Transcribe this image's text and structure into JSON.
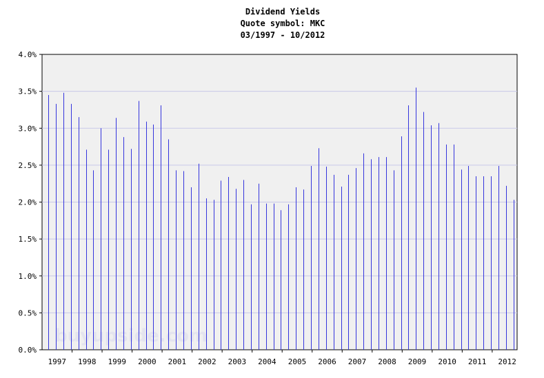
{
  "chart_data": {
    "type": "bar",
    "title_lines": [
      "Dividend Yields",
      "Quote symbol: MKC",
      "03/1997 - 10/2012"
    ],
    "watermark": "buyupside.com",
    "y_ticks": [
      "0.0%",
      "0.5%",
      "1.0%",
      "1.5%",
      "2.0%",
      "2.5%",
      "3.0%",
      "3.5%",
      "4.0%"
    ],
    "x_ticks": [
      "1997",
      "1998",
      "1999",
      "2000",
      "2001",
      "2002",
      "2003",
      "2004",
      "2005",
      "2006",
      "2007",
      "2008",
      "2009",
      "2010",
      "2011",
      "2012"
    ],
    "xlim": [
      1997.0,
      2012.83
    ],
    "ylim": [
      0,
      4.0
    ],
    "grid": true,
    "colors": {
      "bar": "#3333dd",
      "plot_bg": "#f0f0f0",
      "grid": "#c8c8e8",
      "axis": "#000000"
    },
    "x": [
      1997.21,
      1997.46,
      1997.71,
      1997.96,
      1998.21,
      1998.46,
      1998.71,
      1998.96,
      1999.21,
      1999.46,
      1999.71,
      1999.96,
      2000.21,
      2000.46,
      2000.71,
      2000.96,
      2001.21,
      2001.46,
      2001.71,
      2001.96,
      2002.21,
      2002.46,
      2002.71,
      2002.96,
      2003.21,
      2003.46,
      2003.71,
      2003.96,
      2004.21,
      2004.46,
      2004.71,
      2004.96,
      2005.21,
      2005.46,
      2005.71,
      2005.96,
      2006.21,
      2006.46,
      2006.71,
      2006.96,
      2007.21,
      2007.46,
      2007.71,
      2007.96,
      2008.21,
      2008.46,
      2008.71,
      2008.96,
      2009.21,
      2009.46,
      2009.71,
      2009.96,
      2010.21,
      2010.46,
      2010.71,
      2010.96,
      2011.21,
      2011.46,
      2011.71,
      2011.96,
      2012.21,
      2012.46,
      2012.71
    ],
    "values": [
      3.45,
      3.33,
      3.48,
      3.33,
      3.15,
      2.71,
      2.43,
      3.0,
      2.71,
      3.14,
      2.88,
      2.72,
      3.37,
      3.09,
      3.05,
      3.31,
      2.85,
      2.43,
      2.42,
      2.2,
      2.52,
      2.05,
      2.03,
      2.29,
      2.34,
      2.18,
      2.3,
      1.97,
      2.25,
      1.98,
      1.98,
      1.89,
      1.97,
      2.2,
      2.17,
      2.49,
      2.73,
      2.48,
      2.37,
      2.21,
      2.37,
      2.46,
      2.66,
      2.58,
      2.61,
      2.61,
      2.43,
      2.89,
      3.31,
      3.55,
      3.22,
      3.04,
      3.07,
      2.78,
      2.78,
      2.44,
      2.49,
      2.35,
      2.35,
      2.35,
      2.49,
      2.22,
      2.03
    ]
  }
}
